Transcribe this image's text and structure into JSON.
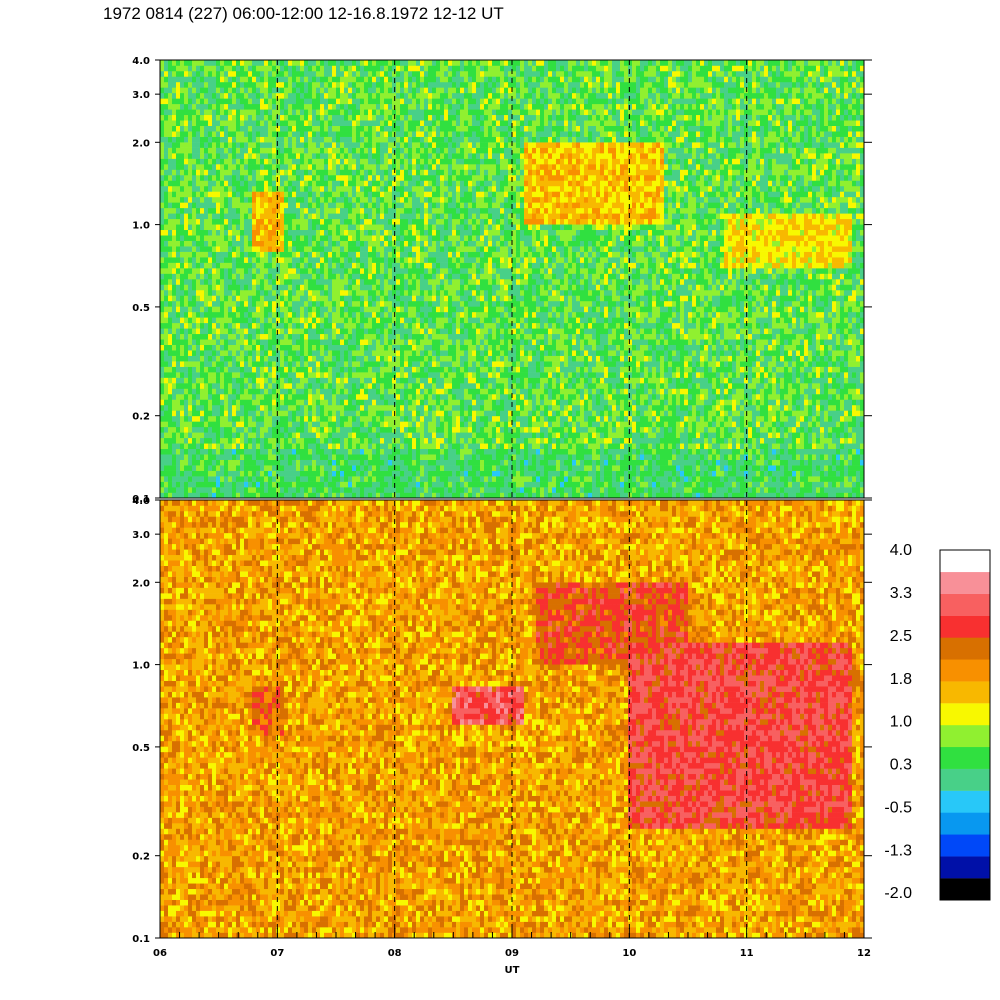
{
  "title": "1972 0814 (227) 06:00-12:00 12-16.8.1972  12-12 UT",
  "chart_data": {
    "type": "heatmap",
    "title": "1972 0814 (227) 06:00-12:00 12-16.8.1972  12-12 UT",
    "xlabel": "UT",
    "x_ticks": [
      "06",
      "07",
      "08",
      "09",
      "10",
      "11",
      "12"
    ],
    "xlim": [
      6,
      12
    ],
    "y_scale": "log",
    "y_ticks": [
      "0.1",
      "0.2",
      "0.5",
      "1.0",
      "2.0",
      "3.0",
      "4.0"
    ],
    "y_tick_values": [
      0.1,
      0.2,
      0.5,
      1.0,
      2.0,
      3.0,
      4.0
    ],
    "ylim": [
      0.1,
      4.0
    ],
    "dashed_vertical_lines_at": [
      7,
      8,
      9,
      10,
      11
    ],
    "panels": [
      {
        "name": "upper",
        "typical_level": 0.5,
        "features": [
          {
            "x_range": [
              6.8,
              7.05
            ],
            "y_range": [
              0.8,
              1.3
            ],
            "level": 1.6
          },
          {
            "x_range": [
              9.1,
              10.3
            ],
            "y_range": [
              1.0,
              2.0
            ],
            "level": 1.5
          },
          {
            "x_range": [
              10.8,
              11.9
            ],
            "y_range": [
              0.7,
              1.1
            ],
            "level": 1.3
          },
          {
            "x_range": [
              6.0,
              12.0
            ],
            "y_range": [
              0.1,
              0.15
            ],
            "level": 0.3
          }
        ]
      },
      {
        "name": "lower",
        "typical_level": 1.8,
        "features": [
          {
            "x_range": [
              6.8,
              7.05
            ],
            "y_range": [
              0.55,
              0.85
            ],
            "level": 2.4
          },
          {
            "x_range": [
              8.5,
              9.1
            ],
            "y_range": [
              0.6,
              0.85
            ],
            "level": 2.9
          },
          {
            "x_range": [
              9.2,
              10.5
            ],
            "y_range": [
              1.0,
              2.0
            ],
            "level": 2.5
          },
          {
            "x_range": [
              10.0,
              11.9
            ],
            "y_range": [
              0.25,
              1.2
            ],
            "level": 2.8
          }
        ]
      }
    ],
    "colorbar": {
      "labels": [
        "4.0",
        "3.3",
        "2.5",
        "1.8",
        "1.0",
        "0.3",
        "-0.5",
        "-1.3",
        "-2.0"
      ],
      "min": -2.0,
      "max": 4.0,
      "colors": [
        "#000000",
        "#0010a8",
        "#0048f8",
        "#0898f0",
        "#28c8f8",
        "#48d088",
        "#30e040",
        "#90f030",
        "#f8f800",
        "#f8b800",
        "#f89000",
        "#d87000",
        "#f83030",
        "#f86060",
        "#f89098",
        "#ffffff"
      ]
    }
  }
}
